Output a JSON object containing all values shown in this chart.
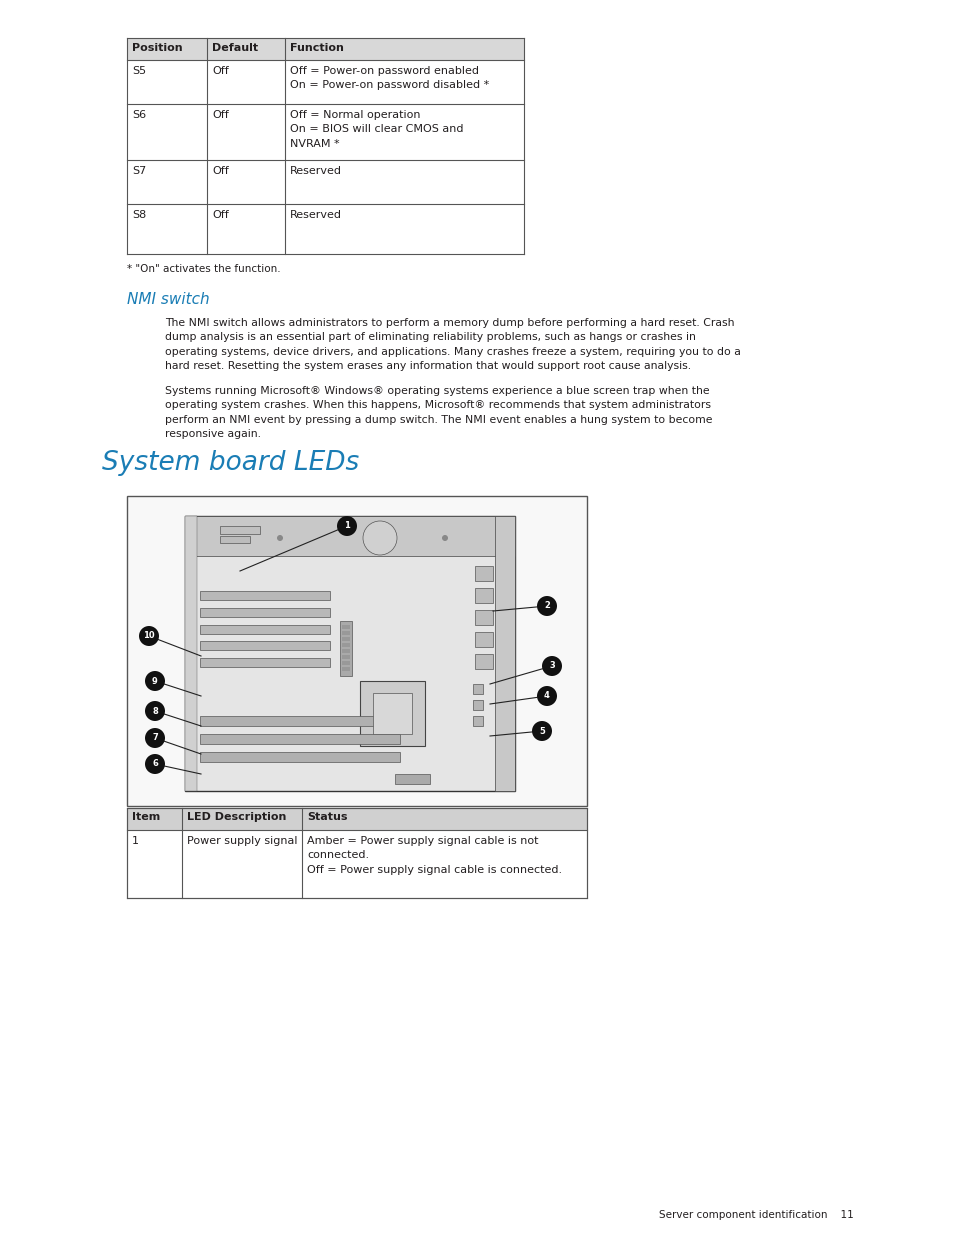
{
  "bg_color": "#ffffff",
  "page_width": 9.54,
  "page_height": 12.35,
  "text_color": "#231f20",
  "nmi_color": "#1a7db5",
  "top_table": {
    "headers": [
      "Position",
      "Default",
      "Function"
    ],
    "rows": [
      [
        "S5",
        "Off",
        "Off = Power-on password enabled\nOn = Power-on password disabled *"
      ],
      [
        "S6",
        "Off",
        "Off = Normal operation\nOn = BIOS will clear CMOS and\nNVRAM *"
      ],
      [
        "S7",
        "Off",
        "Reserved"
      ],
      [
        "S8",
        "Off",
        "Reserved"
      ]
    ]
  },
  "footnote": "* \"On\" activates the function.",
  "nmi_title": "NMI switch",
  "nmi_para1": "The NMI switch allows administrators to perform a memory dump before performing a hard reset. Crash\ndump analysis is an essential part of eliminating reliability problems, such as hangs or crashes in\noperating systems, device drivers, and applications. Many crashes freeze a system, requiring you to do a\nhard reset. Resetting the system erases any information that would support root cause analysis.",
  "nmi_para2": "Systems running Microsoft® Windows® operating systems experience a blue screen trap when the\noperating system crashes. When this happens, Microsoft® recommends that system administrators\nperform an NMI event by pressing a dump switch. The NMI event enables a hung system to become\nresponsive again.",
  "system_leds_title": "System board LEDs",
  "bottom_table": {
    "headers": [
      "Item",
      "LED Description",
      "Status"
    ],
    "rows": [
      [
        "1",
        "Power supply signal",
        "Amber = Power supply signal cable is not\nconnected.\nOff = Power supply signal cable is connected."
      ]
    ]
  },
  "footer_text": "Server component identification    11"
}
